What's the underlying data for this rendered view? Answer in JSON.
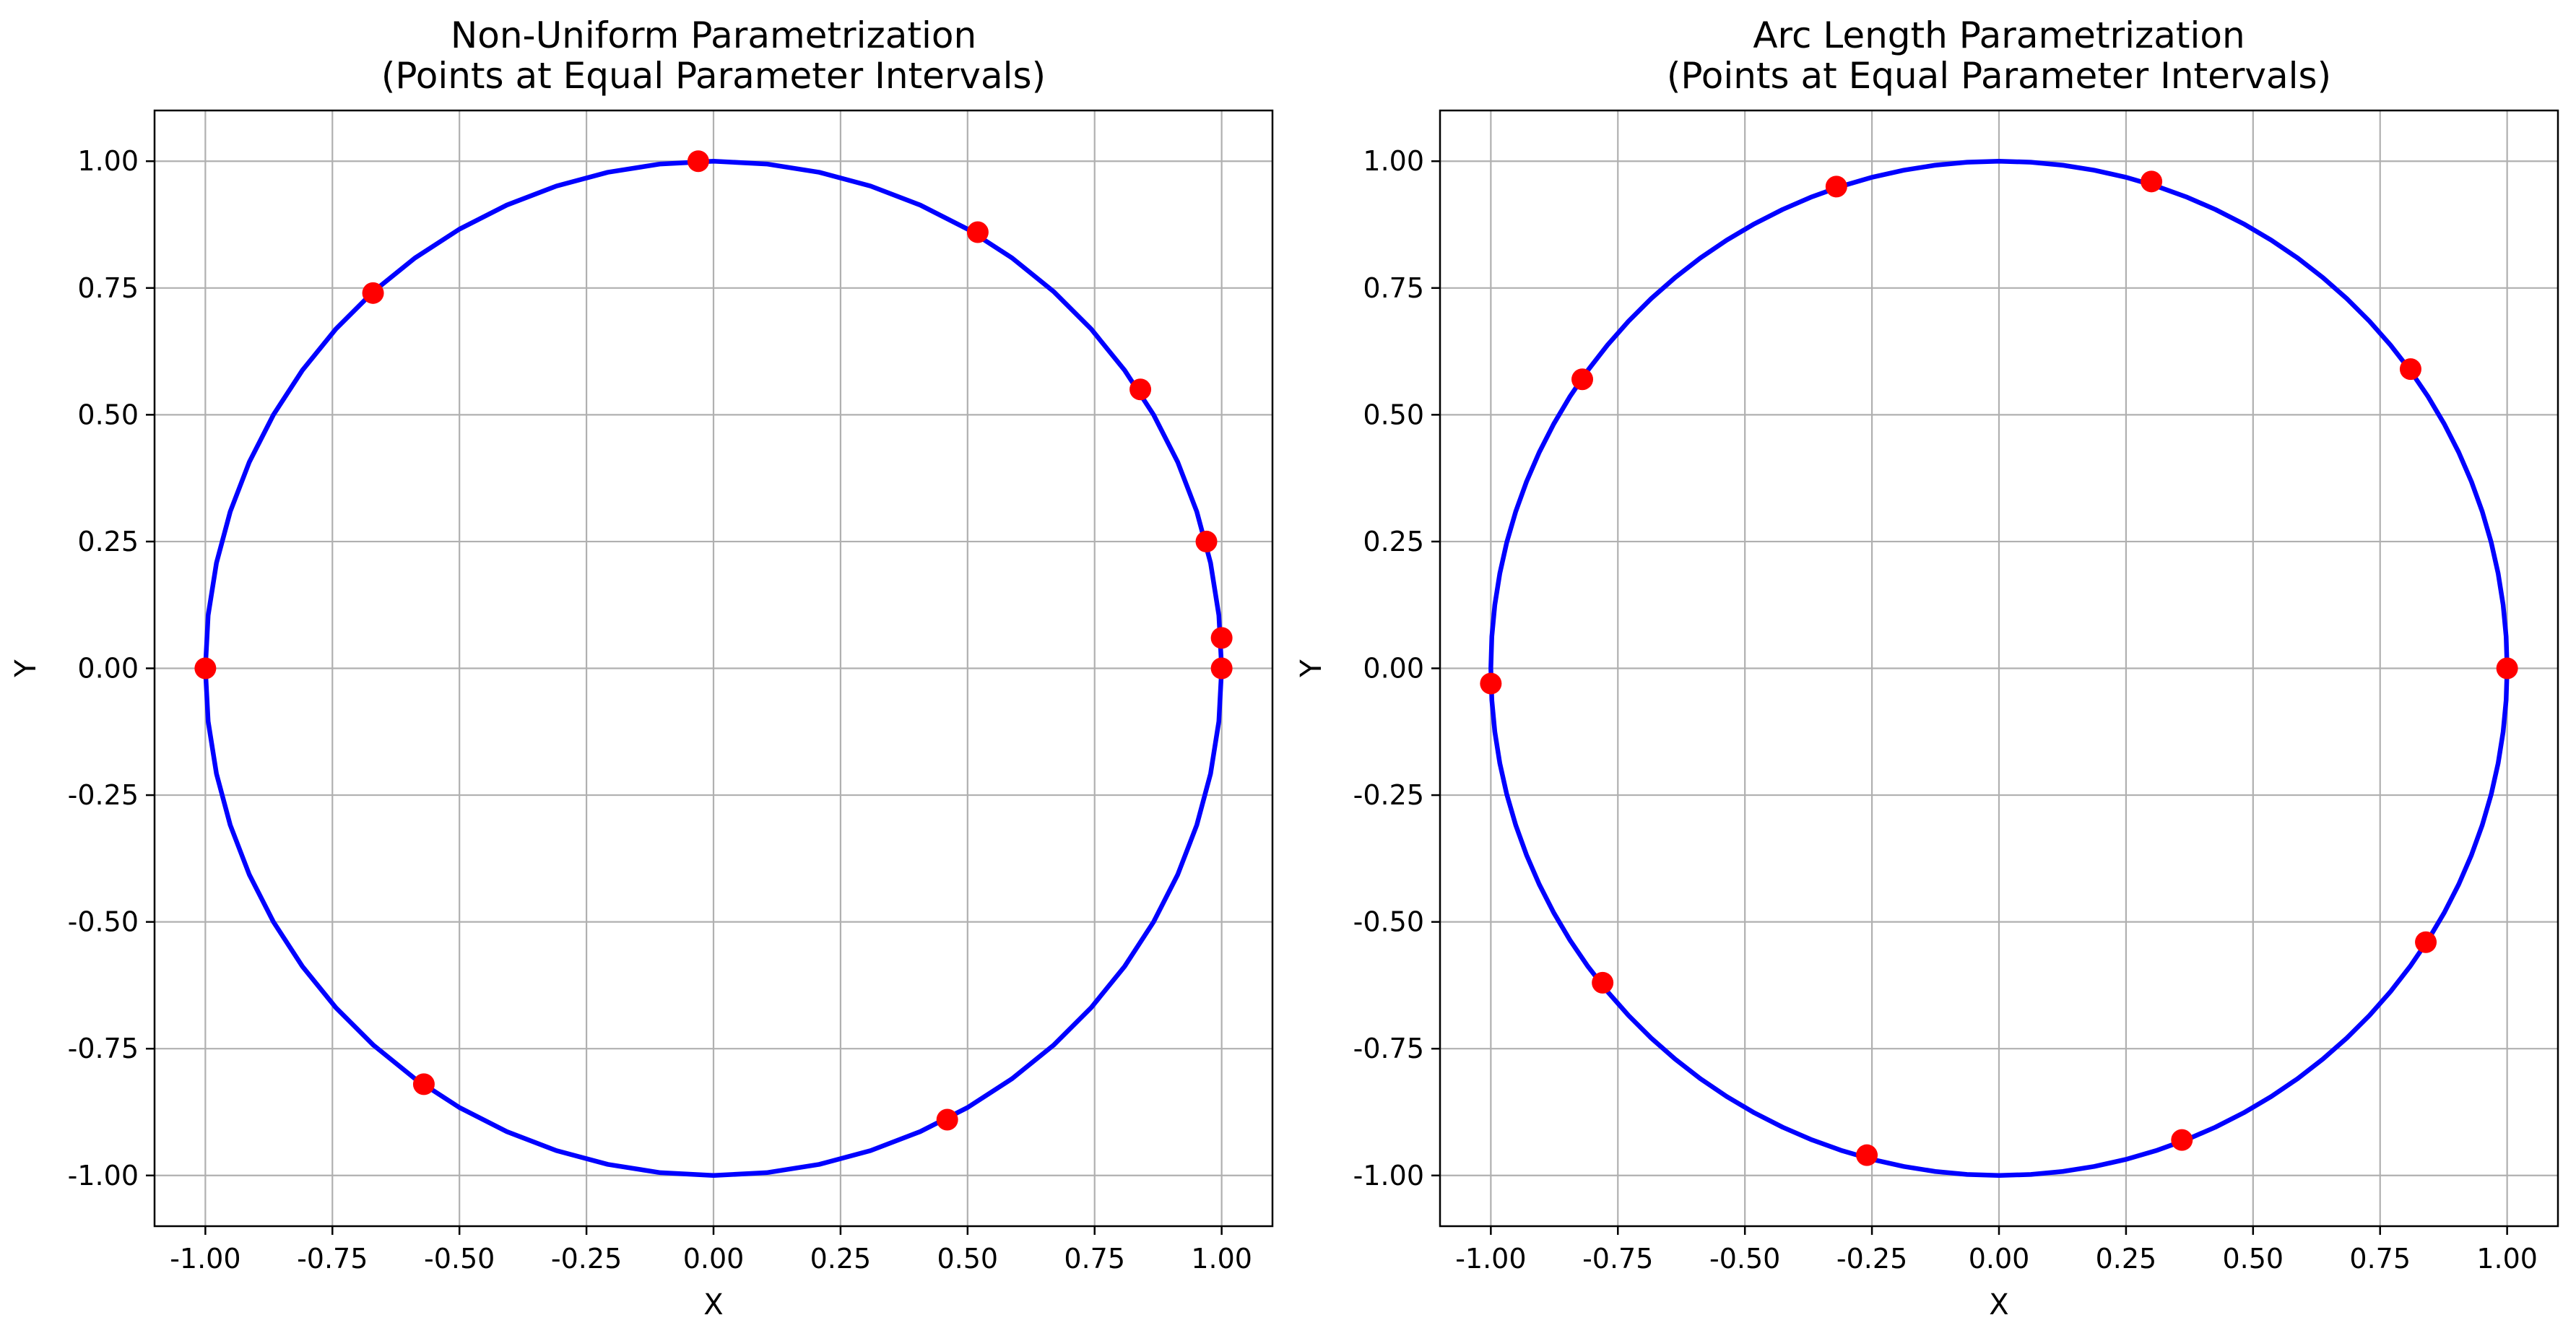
{
  "chart_data": [
    {
      "type": "line",
      "title": "Non-Uniform Parametrization\n(Points at Equal Parameter Intervals)",
      "xlabel": "X",
      "ylabel": "Y",
      "xlim": [
        -1.1,
        1.1
      ],
      "ylim": [
        -1.1,
        1.1
      ],
      "xticks": [
        -1.0,
        -0.75,
        -0.5,
        -0.25,
        0.0,
        0.25,
        0.5,
        0.75,
        1.0
      ],
      "yticks": [
        -1.0,
        -0.75,
        -0.5,
        -0.25,
        0.0,
        0.25,
        0.5,
        0.75,
        1.0
      ],
      "grid": true,
      "series": [
        {
          "kind": "curve",
          "color": "#0000ff",
          "shape": "unit circle",
          "points": 60
        },
        {
          "kind": "markers",
          "color": "#ff0000",
          "x": [
            1.0,
            1.0,
            0.97,
            0.84,
            0.52,
            -0.03,
            -0.67,
            -1.0,
            -0.57,
            0.46
          ],
          "y": [
            0.0,
            0.06,
            0.25,
            0.55,
            0.86,
            1.0,
            0.74,
            0.0,
            -0.82,
            -0.89
          ]
        }
      ]
    },
    {
      "type": "line",
      "title": "Arc Length Parametrization\n(Points at Equal Parameter Intervals)",
      "xlabel": "X",
      "ylabel": "Y",
      "xlim": [
        -1.1,
        1.1
      ],
      "ylim": [
        -1.1,
        1.1
      ],
      "xticks": [
        -1.0,
        -0.75,
        -0.5,
        -0.25,
        0.0,
        0.25,
        0.5,
        0.75,
        1.0
      ],
      "yticks": [
        -1.0,
        -0.75,
        -0.5,
        -0.25,
        0.0,
        0.25,
        0.5,
        0.75,
        1.0
      ],
      "grid": true,
      "series": [
        {
          "kind": "curve",
          "color": "#0000ff",
          "shape": "unit circle",
          "points": 100
        },
        {
          "kind": "markers",
          "color": "#ff0000",
          "x": [
            1.0,
            0.81,
            0.3,
            -0.32,
            -0.82,
            -1.0,
            -0.78,
            -0.26,
            0.36,
            0.84
          ],
          "y": [
            0.0,
            0.59,
            0.96,
            0.95,
            0.57,
            -0.03,
            -0.62,
            -0.96,
            -0.93,
            -0.54
          ]
        }
      ]
    }
  ]
}
